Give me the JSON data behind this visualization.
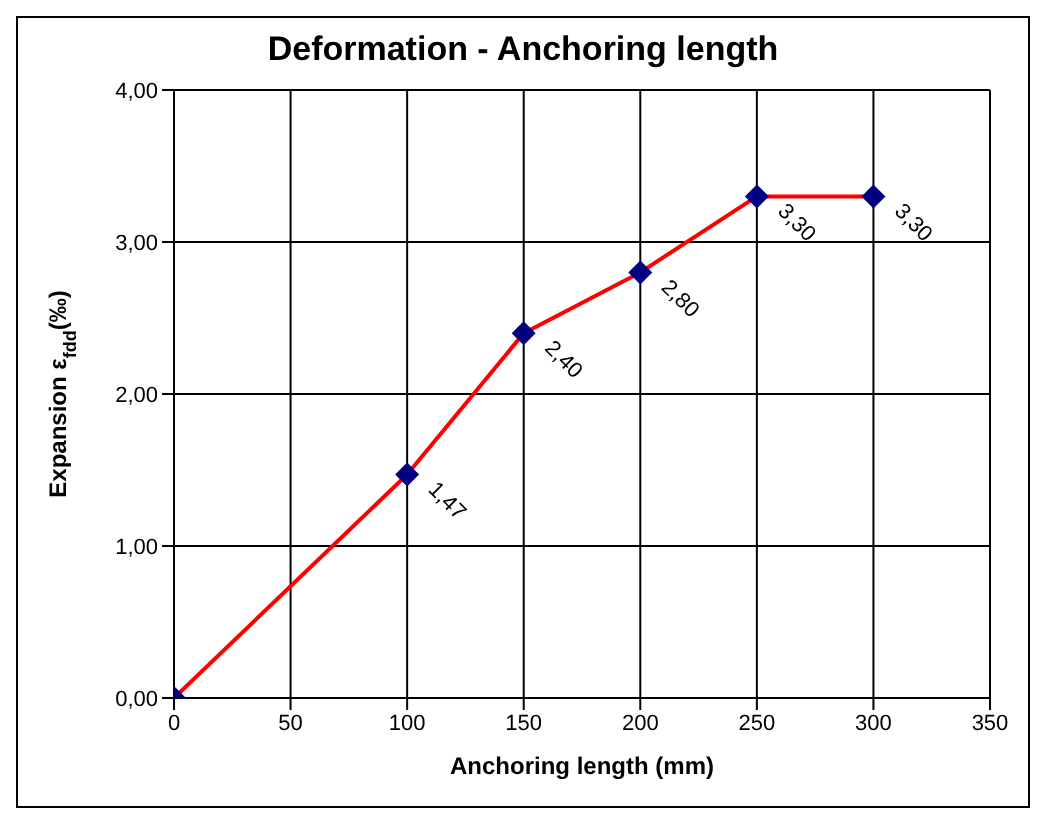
{
  "chart_data": {
    "type": "line",
    "title": "Deformation - Anchoring length",
    "xlabel": "Anchoring length (mm)",
    "ylabel": "Expansion ε$_{fdd}$(‰)",
    "x": [
      0,
      100,
      150,
      200,
      250,
      300
    ],
    "series": [
      {
        "color": "#ff0000",
        "values": [
          0,
          1.47,
          2.4,
          2.8,
          3.3,
          3.3
        ]
      }
    ],
    "value_labels": [
      null,
      "1,47",
      "2,40",
      "2,80",
      "3,30",
      "3,30"
    ],
    "xlim": [
      0,
      350
    ],
    "xticks": [
      0,
      50,
      100,
      150,
      200,
      250,
      300,
      350
    ],
    "ylim": [
      0,
      4
    ],
    "yticks": [
      {
        "value": 0,
        "label": "0,00"
      },
      {
        "value": 1,
        "label": "1,00"
      },
      {
        "value": 2,
        "label": "2,00"
      },
      {
        "value": 3,
        "label": "3,00"
      },
      {
        "value": 4,
        "label": "4,00"
      }
    ],
    "grid": true,
    "marker": "diamond",
    "line_style": "solid"
  }
}
